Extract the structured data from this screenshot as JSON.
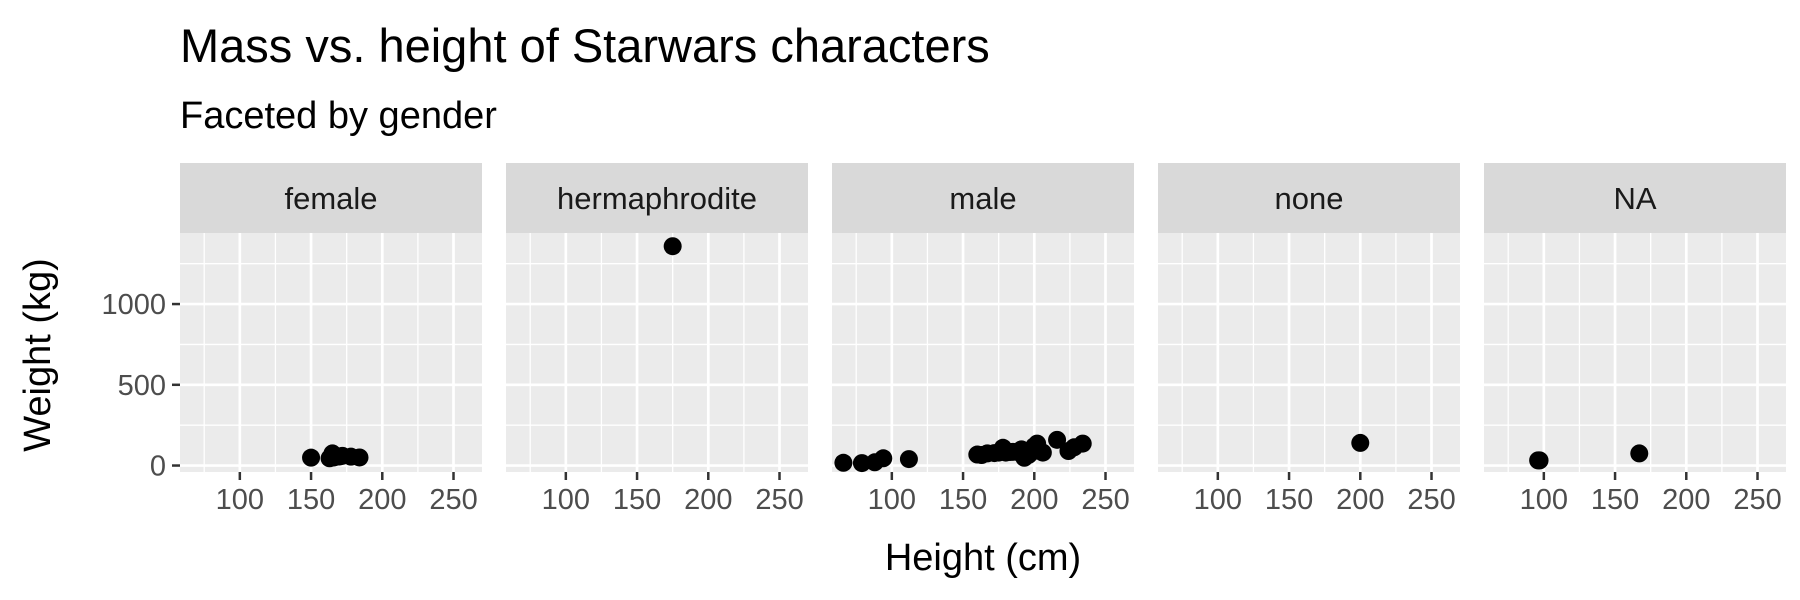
{
  "chart_data": {
    "type": "scatter",
    "title": "Mass vs. height of Starwars characters",
    "subtitle": "Faceted by gender",
    "xlabel": "Height (cm)",
    "ylabel": "Weight (kg)",
    "xlim": [
      58,
      270
    ],
    "ylim": [
      -40,
      1440
    ],
    "x_ticks": [
      100,
      150,
      200,
      250
    ],
    "x_tick_labels": [
      "100",
      "150",
      "200",
      "250"
    ],
    "y_ticks": [
      0,
      500,
      1000
    ],
    "y_tick_labels": [
      "0",
      "500",
      "1000"
    ],
    "grid": true,
    "point_color": "#000000",
    "panel_background": "#ebebeb",
    "strip_background": "#d9d9d9",
    "facets": [
      {
        "label": "female",
        "points": [
          {
            "x": 150,
            "y": 49
          },
          {
            "x": 165,
            "y": 75
          },
          {
            "x": 168,
            "y": 55
          },
          {
            "x": 166,
            "y": 50
          },
          {
            "x": 170,
            "y": 56
          },
          {
            "x": 178,
            "y": 55
          },
          {
            "x": 184,
            "y": 50
          },
          {
            "x": 163,
            "y": 45
          },
          {
            "x": 172,
            "y": 60
          }
        ]
      },
      {
        "label": "hermaphrodite",
        "points": [
          {
            "x": 175,
            "y": 1358
          }
        ]
      },
      {
        "label": "male",
        "points": [
          {
            "x": 66,
            "y": 17
          },
          {
            "x": 79,
            "y": 15
          },
          {
            "x": 88,
            "y": 20
          },
          {
            "x": 94,
            "y": 45
          },
          {
            "x": 112,
            "y": 40
          },
          {
            "x": 160,
            "y": 68
          },
          {
            "x": 163,
            "y": 65
          },
          {
            "x": 167,
            "y": 75
          },
          {
            "x": 172,
            "y": 77
          },
          {
            "x": 175,
            "y": 80
          },
          {
            "x": 178,
            "y": 110
          },
          {
            "x": 180,
            "y": 80
          },
          {
            "x": 183,
            "y": 84
          },
          {
            "x": 185,
            "y": 85
          },
          {
            "x": 188,
            "y": 84
          },
          {
            "x": 191,
            "y": 100
          },
          {
            "x": 193,
            "y": 48
          },
          {
            "x": 196,
            "y": 66
          },
          {
            "x": 198,
            "y": 82
          },
          {
            "x": 200,
            "y": 120
          },
          {
            "x": 202,
            "y": 136
          },
          {
            "x": 206,
            "y": 80
          },
          {
            "x": 216,
            "y": 159
          },
          {
            "x": 224,
            "y": 90
          },
          {
            "x": 228,
            "y": 113
          },
          {
            "x": 234,
            "y": 136
          }
        ]
      },
      {
        "label": "none",
        "points": [
          {
            "x": 200,
            "y": 140
          }
        ]
      },
      {
        "label": "NA",
        "points": [
          {
            "x": 96,
            "y": 32
          },
          {
            "x": 97,
            "y": 32
          },
          {
            "x": 167,
            "y": 75
          }
        ]
      }
    ]
  }
}
